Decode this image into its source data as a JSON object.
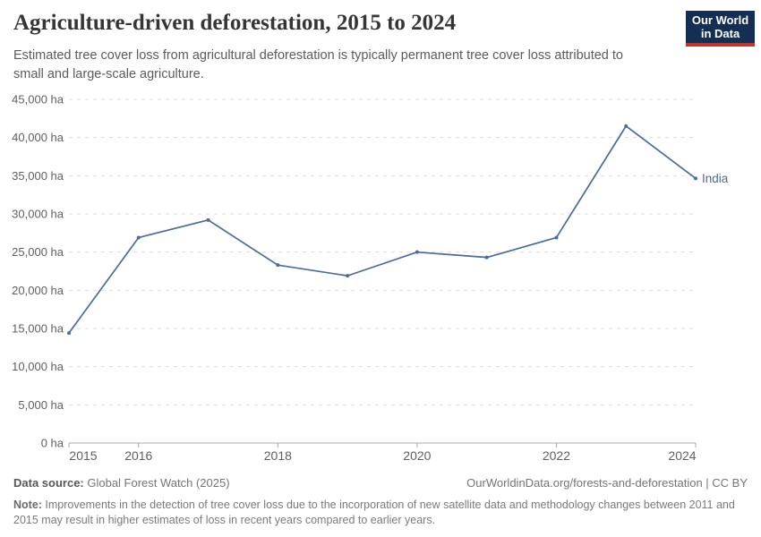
{
  "header": {
    "title": "Agriculture-driven deforestation, 2015 to 2024",
    "subtitle": "Estimated tree cover loss from agricultural deforestation is typically permanent tree cover loss attributed to small and large-scale agriculture.",
    "logo": {
      "line1": "Our World",
      "line2": "in Data",
      "bg_color": "#152e54",
      "accent_color": "#c0362c"
    }
  },
  "chart_data": {
    "type": "line",
    "title": "Agriculture-driven deforestation, 2015 to 2024",
    "unit": "ha",
    "grid": "horizontal-dashed",
    "legend_position": "end-of-line-label",
    "x": [
      2015,
      2016,
      2017,
      2018,
      2019,
      2020,
      2021,
      2022,
      2023,
      2024
    ],
    "series": [
      {
        "name": "India",
        "color": "#4c6a9c",
        "values": [
          14400,
          26900,
          29200,
          23300,
          21900,
          25000,
          24300,
          26900,
          41500,
          34650
        ]
      }
    ],
    "ylim": [
      0,
      45000
    ],
    "yticks": [
      {
        "value": 0,
        "label": "0 ha"
      },
      {
        "value": 5000,
        "label": "5,000 ha"
      },
      {
        "value": 10000,
        "label": "10,000 ha"
      },
      {
        "value": 15000,
        "label": "15,000 ha"
      },
      {
        "value": 20000,
        "label": "20,000 ha"
      },
      {
        "value": 25000,
        "label": "25,000 ha"
      },
      {
        "value": 30000,
        "label": "30,000 ha"
      },
      {
        "value": 35000,
        "label": "35,000 ha"
      },
      {
        "value": 40000,
        "label": "40,000 ha"
      },
      {
        "value": 45000,
        "label": "45,000 ha"
      }
    ],
    "xticks": [
      2015,
      2016,
      2018,
      2020,
      2022,
      2024
    ]
  },
  "footer": {
    "datasource_label": "Data source:",
    "datasource_value": " Global Forest Watch (2025)",
    "link": "OurWorldinData.org/forests-and-deforestation | CC BY",
    "note_label": "Note:",
    "note_text": " Improvements in the detection of tree cover loss due to the incorporation of new satellite data and methodology changes between 2011 and 2015 may result in higher estimates of loss in recent years compared to earlier years."
  }
}
